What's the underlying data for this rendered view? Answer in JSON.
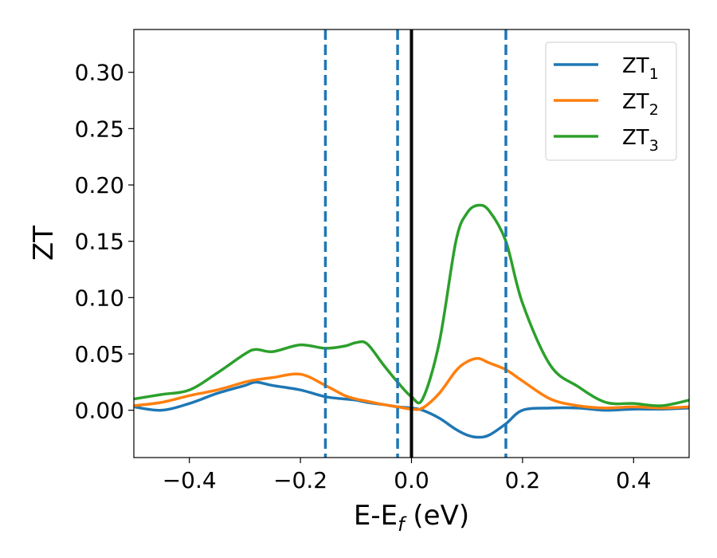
{
  "chart_data": {
    "type": "line",
    "title": "",
    "xlabel": {
      "base": "E-E",
      "sub": "f",
      "suffix": " (eV)"
    },
    "ylabel": "ZT",
    "xlim": [
      -0.5,
      0.5
    ],
    "ylim": [
      -0.042,
      0.338
    ],
    "xticks": [
      -0.4,
      -0.2,
      0.0,
      0.2,
      0.4
    ],
    "xtick_labels": [
      "−0.4",
      "−0.2",
      "0.0",
      "0.2",
      "0.4"
    ],
    "yticks": [
      0.0,
      0.05,
      0.1,
      0.15,
      0.2,
      0.25,
      0.3
    ],
    "ytick_labels": [
      "0.00",
      "0.05",
      "0.10",
      "0.15",
      "0.20",
      "0.25",
      "0.30"
    ],
    "grid": false,
    "legend_position": "top-right",
    "x": [
      -0.5,
      -0.45,
      -0.4,
      -0.35,
      -0.3,
      -0.28,
      -0.25,
      -0.2,
      -0.155,
      -0.12,
      -0.1,
      -0.08,
      -0.05,
      -0.025,
      0.0,
      0.02,
      0.05,
      0.08,
      0.1,
      0.12,
      0.14,
      0.17,
      0.2,
      0.25,
      0.3,
      0.35,
      0.4,
      0.45,
      0.5
    ],
    "series": [
      {
        "name": "ZT1",
        "name_base": "ZT",
        "name_sub": "1",
        "color": "#1f77b4",
        "values": [
          0.003,
          0.0,
          0.006,
          0.015,
          0.022,
          0.025,
          0.022,
          0.018,
          0.012,
          0.01,
          0.009,
          0.007,
          0.005,
          0.003,
          0.002,
          0.0,
          -0.007,
          -0.017,
          -0.022,
          -0.024,
          -0.022,
          -0.012,
          0.0,
          0.002,
          0.002,
          0.0,
          0.001,
          0.001,
          0.002
        ]
      },
      {
        "name": "ZT2",
        "name_base": "ZT",
        "name_sub": "2",
        "color": "#ff7f0e",
        "values": [
          0.004,
          0.007,
          0.013,
          0.018,
          0.025,
          0.027,
          0.029,
          0.032,
          0.022,
          0.013,
          0.01,
          0.008,
          0.005,
          0.003,
          0.001,
          0.002,
          0.015,
          0.035,
          0.043,
          0.046,
          0.042,
          0.036,
          0.026,
          0.01,
          0.004,
          0.002,
          0.003,
          0.002,
          0.003
        ]
      },
      {
        "name": "ZT3",
        "name_base": "ZT",
        "name_sub": "3",
        "color": "#2ca02c",
        "values": [
          0.01,
          0.014,
          0.018,
          0.033,
          0.05,
          0.054,
          0.052,
          0.058,
          0.055,
          0.057,
          0.06,
          0.059,
          0.04,
          0.025,
          0.012,
          0.01,
          0.06,
          0.15,
          0.175,
          0.182,
          0.177,
          0.15,
          0.095,
          0.04,
          0.021,
          0.007,
          0.006,
          0.004,
          0.009
        ]
      }
    ],
    "vertical_lines": [
      {
        "x": -0.155,
        "style": "dashed",
        "color": "#1f77b4"
      },
      {
        "x": -0.025,
        "style": "dashed",
        "color": "#1f77b4"
      },
      {
        "x": 0.0,
        "style": "solid",
        "color": "#000000"
      },
      {
        "x": 0.17,
        "style": "dashed",
        "color": "#1f77b4"
      }
    ]
  }
}
